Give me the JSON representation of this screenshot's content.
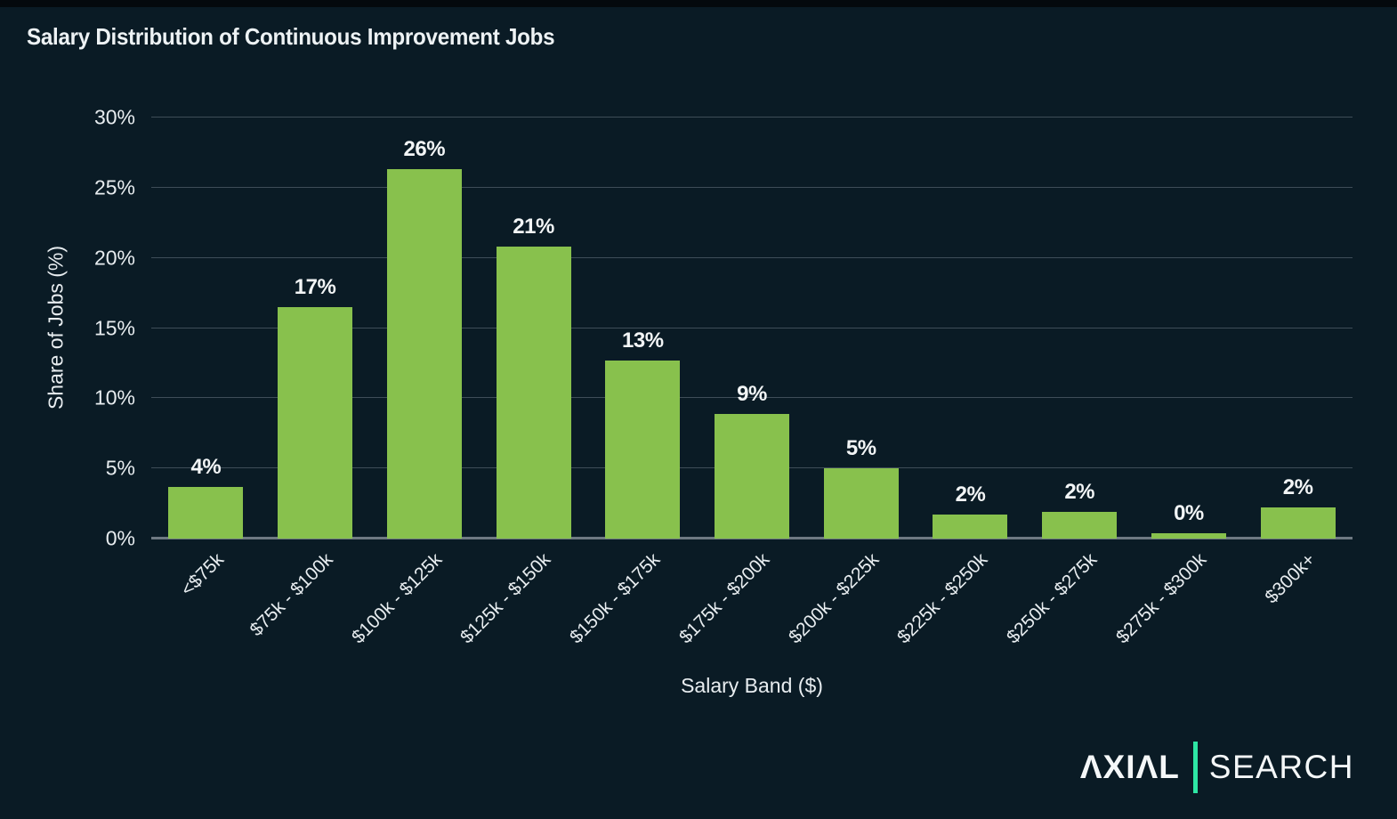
{
  "title": "Salary Distribution of Continuous Improvement Jobs",
  "colors": {
    "background": "#0a1b25",
    "bar_fill": "#88c14d",
    "gridline": "#3e4d58",
    "axis_line": "#6e7982",
    "text": "#e8edf0",
    "logo_divider": "#2ee6a4"
  },
  "chart_data": {
    "type": "bar",
    "title": "Salary Distribution of Continuous Improvement Jobs",
    "xlabel": "Salary Band ($)",
    "ylabel": "Share of Jobs (%)",
    "ylim": [
      0,
      30
    ],
    "ytick_values": [
      0,
      5,
      10,
      15,
      20,
      25,
      30
    ],
    "ytick_labels": [
      "0%",
      "5%",
      "10%",
      "15%",
      "20%",
      "25%",
      "30%"
    ],
    "grid": true,
    "legend": "none",
    "categories": [
      "<$75k",
      "$75k - $100k",
      "$100k - $125k",
      "$125k - $150k",
      "$150k - $175k",
      "$175k - $200k",
      "$200k - $225k",
      "$225k - $250k",
      "$250k - $275k",
      "$275k - $300k",
      "$300k+"
    ],
    "values": [
      3.7,
      16.5,
      26.3,
      20.8,
      12.7,
      8.9,
      5.0,
      1.7,
      1.9,
      0.4,
      2.2
    ],
    "data_labels": [
      "4%",
      "17%",
      "26%",
      "21%",
      "13%",
      "9%",
      "5%",
      "2%",
      "2%",
      "0%",
      "2%"
    ]
  },
  "footer": {
    "brand_primary": "ΛXIΛL",
    "brand_secondary": "SEARCH"
  }
}
